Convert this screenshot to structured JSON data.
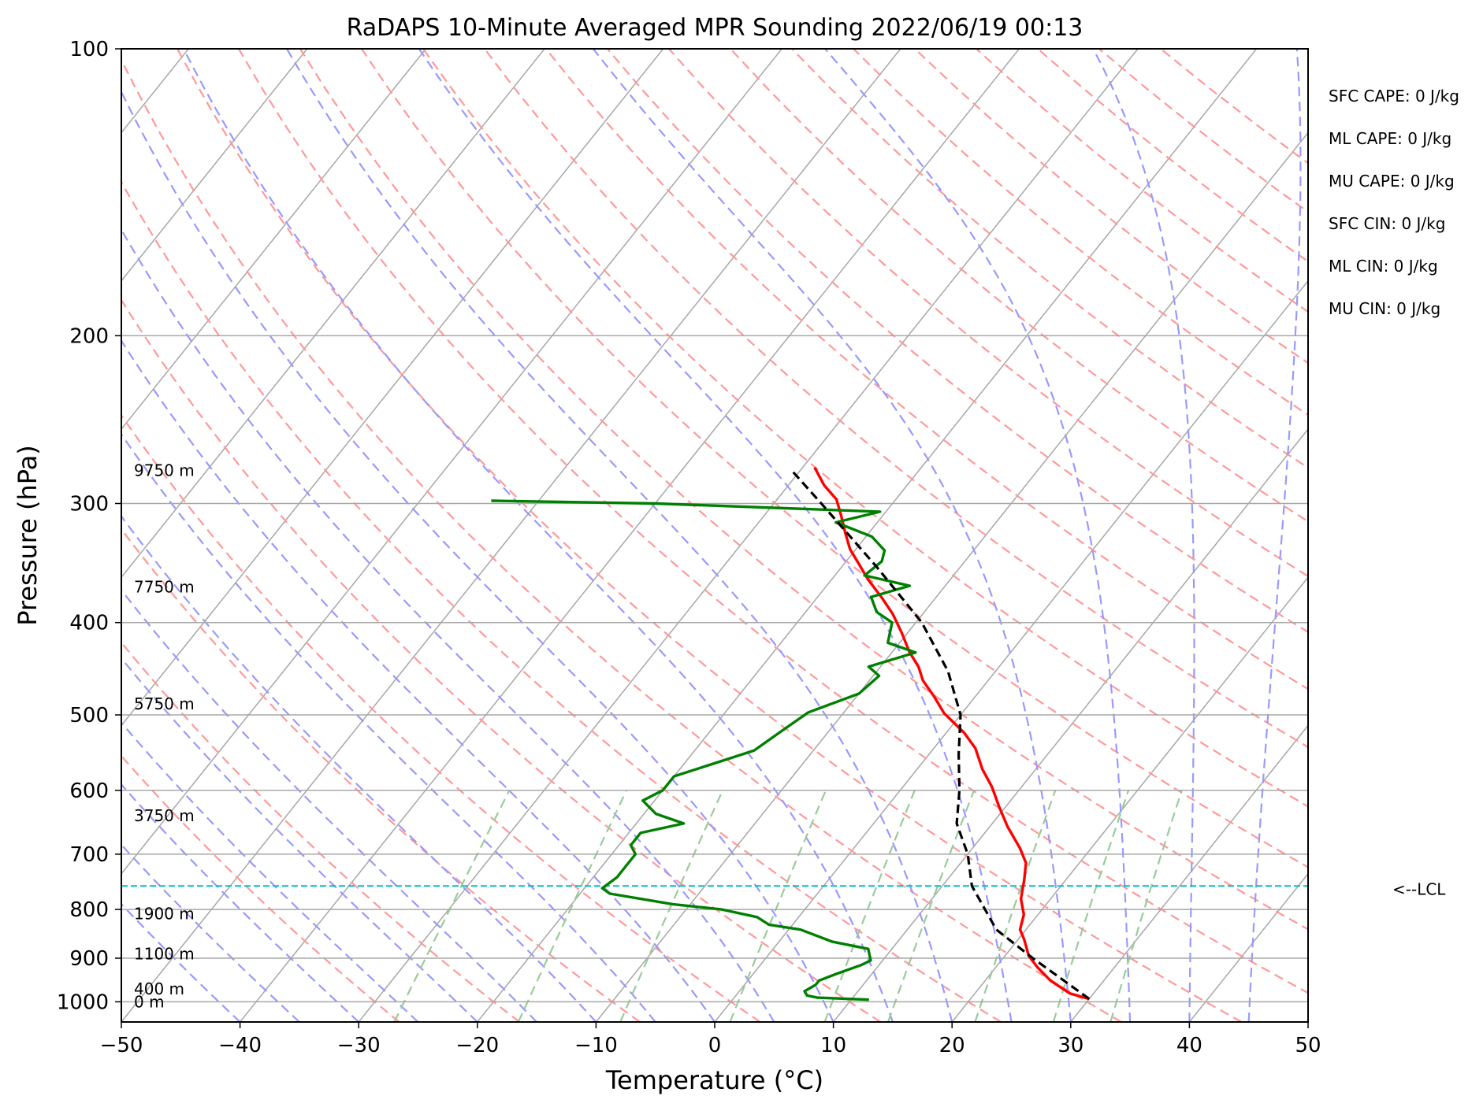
{
  "chart_data": {
    "type": "line",
    "title": "RaDAPS 10-Minute Averaged MPR Sounding 2022/06/19 00:13",
    "xlabel": "Temperature (°C)",
    "ylabel": "Pressure (hPa)",
    "xlim": [
      -50,
      50
    ],
    "ylim": [
      1050,
      100
    ],
    "yscale": "log",
    "grid": true,
    "x_ticks": [
      -50,
      -40,
      -30,
      -20,
      -10,
      0,
      10,
      20,
      30,
      40,
      50
    ],
    "x_tick_labels": [
      "−50",
      "−40",
      "−30",
      "−20",
      "−10",
      "0",
      "10",
      "20",
      "30",
      "40",
      "50"
    ],
    "y_ticks": [
      100,
      200,
      300,
      400,
      500,
      600,
      700,
      800,
      900,
      1000
    ],
    "y_tick_labels": [
      "100",
      "200",
      "300",
      "400",
      "500",
      "600",
      "700",
      "800",
      "900",
      "1000"
    ],
    "skew": "skew-T log-P",
    "series": [
      {
        "role": "temperature",
        "color": "#ff0000",
        "points": [
          [
            30.0,
            993
          ],
          [
            28.0,
            980
          ],
          [
            25.5,
            950
          ],
          [
            23.5,
            920
          ],
          [
            22.0,
            895
          ],
          [
            20.5,
            860
          ],
          [
            19.5,
            840
          ],
          [
            18.8,
            810
          ],
          [
            17.5,
            780
          ],
          [
            16.5,
            745
          ],
          [
            15.5,
            715
          ],
          [
            14.0,
            690
          ],
          [
            11.5,
            655
          ],
          [
            9.5,
            625
          ],
          [
            7.5,
            595
          ],
          [
            5.5,
            570
          ],
          [
            3.5,
            542
          ],
          [
            1.5,
            522
          ],
          [
            -1.5,
            498
          ],
          [
            -3.5,
            478
          ],
          [
            -5.5,
            460
          ],
          [
            -6.8,
            445
          ],
          [
            -8.5,
            430
          ],
          [
            -10.5,
            410
          ],
          [
            -12.5,
            392
          ],
          [
            -14.5,
            377
          ],
          [
            -17.0,
            360
          ],
          [
            -18.5,
            349
          ],
          [
            -20.5,
            335
          ],
          [
            -22.0,
            322
          ],
          [
            -23.5,
            309
          ],
          [
            -25.0,
            297
          ],
          [
            -27.0,
            287
          ],
          [
            -29.0,
            275
          ]
        ]
      },
      {
        "role": "dewpoint",
        "color": "#008000",
        "points": [
          [
            11.5,
            995
          ],
          [
            7.0,
            990
          ],
          [
            6.0,
            985
          ],
          [
            5.5,
            975
          ],
          [
            6.0,
            960
          ],
          [
            6.0,
            950
          ],
          [
            7.0,
            935
          ],
          [
            8.5,
            915
          ],
          [
            9.0,
            905
          ],
          [
            8.0,
            880
          ],
          [
            4.5,
            865
          ],
          [
            1.0,
            840
          ],
          [
            -2.0,
            830
          ],
          [
            -3.5,
            815
          ],
          [
            -7.0,
            800
          ],
          [
            -11.5,
            790
          ],
          [
            -17.5,
            770
          ],
          [
            -18.5,
            760
          ],
          [
            -18.0,
            740
          ],
          [
            -18.0,
            715
          ],
          [
            -18.0,
            700
          ],
          [
            -19.0,
            685
          ],
          [
            -19.0,
            665
          ],
          [
            -16.0,
            650
          ],
          [
            -19.0,
            635
          ],
          [
            -21.0,
            615
          ],
          [
            -20.0,
            600
          ],
          [
            -20.0,
            580
          ],
          [
            -15.0,
            545
          ],
          [
            -14.0,
            520
          ],
          [
            -13.0,
            497
          ],
          [
            -10.0,
            475
          ],
          [
            -9.5,
            455
          ],
          [
            -11.0,
            445
          ],
          [
            -8.0,
            430
          ],
          [
            -11.0,
            420
          ],
          [
            -12.0,
            400
          ],
          [
            -14.0,
            390
          ],
          [
            -15.5,
            376
          ],
          [
            -13.0,
            366
          ],
          [
            -17.5,
            357
          ],
          [
            -17.0,
            345
          ],
          [
            -17.5,
            336
          ],
          [
            -19.5,
            325
          ],
          [
            -23.5,
            314
          ],
          [
            -20.5,
            306
          ],
          [
            -40.0,
            300
          ],
          [
            -54.0,
            298
          ]
        ]
      },
      {
        "role": "parcel",
        "color": "#000000",
        "points": [
          [
            30.0,
            993
          ],
          [
            22.5,
            900
          ],
          [
            17.5,
            840
          ],
          [
            12.5,
            756
          ],
          [
            10.0,
            700
          ],
          [
            7.0,
            650
          ],
          [
            5.0,
            600
          ],
          [
            2.5,
            550
          ],
          [
            0.0,
            500
          ],
          [
            -4.0,
            450
          ],
          [
            -9.5,
            400
          ],
          [
            -17.0,
            350
          ],
          [
            -26.0,
            300
          ],
          [
            -30.5,
            278
          ]
        ]
      }
    ],
    "lcl": {
      "pressure": 756,
      "label": "<--LCL"
    },
    "height_labels": [
      {
        "text": "9750 m",
        "pressure": 277
      },
      {
        "text": "7750 m",
        "pressure": 367
      },
      {
        "text": "5750 m",
        "pressure": 487
      },
      {
        "text": "3750 m",
        "pressure": 638
      },
      {
        "text": "1900 m",
        "pressure": 808
      },
      {
        "text": "1100 m",
        "pressure": 891
      },
      {
        "text": "400 m",
        "pressure": 969
      },
      {
        "text": "0 m",
        "pressure": 1000
      }
    ],
    "indices": [
      {
        "name": "SFC CAPE",
        "text": "SFC CAPE: 0 J/kg"
      },
      {
        "name": "ML CAPE",
        "text": "ML CAPE: 0 J/kg"
      },
      {
        "name": "MU CAPE",
        "text": "MU CAPE: 0 J/kg"
      },
      {
        "name": "SFC CIN",
        "text": "SFC CIN: 0 J/kg"
      },
      {
        "name": "ML CIN",
        "text": "ML CIN: 0 J/kg"
      },
      {
        "name": "MU CIN",
        "text": "MU CIN: 0 J/kg"
      }
    ],
    "background_lines": {
      "isotherms_color": "#a8a8a8",
      "dry_adiabats_color": "#ff9999",
      "moist_adiabats_color": "#9999ff",
      "mixing_ratio_color": "#99cc99",
      "lcl_color": "#00c0c0"
    }
  }
}
